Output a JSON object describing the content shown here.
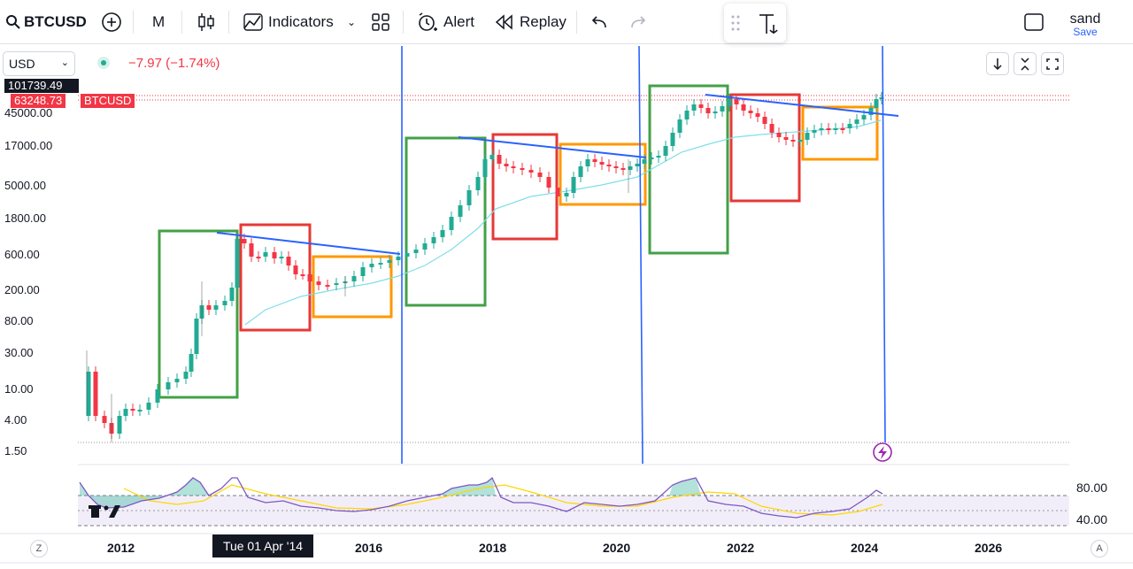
{
  "toolbar": {
    "symbol": "BTCUSD",
    "interval": "M",
    "indicators_label": "Indicators",
    "alert_label": "Alert",
    "replay_label": "Replay",
    "user_name": "sand",
    "save_label": "Save"
  },
  "legend": {
    "currency": "USD",
    "change": "−7.97 (−1.74%)"
  },
  "price_axis": {
    "labels": [
      "45000.00",
      "17000.00",
      "5000.00",
      "1800.00",
      "600.00",
      "200.00",
      "80.00",
      "30.00",
      "10.00",
      "4.00",
      "1.50"
    ],
    "high_tag": "101739.49",
    "last_price_tag": "63248.73",
    "symbol_tag": "BTCUSD"
  },
  "time_axis": {
    "years": [
      "2012",
      "2016",
      "2018",
      "2020",
      "2022",
      "2024",
      "2026"
    ],
    "crosshair_date": "Tue 01 Apr '14",
    "left_corner": "Z",
    "right_corner": "A"
  },
  "rsi": {
    "upper_label": "80.00",
    "lower_label": "40.00"
  },
  "colors": {
    "up": "#22ab94",
    "down": "#f23645",
    "green_box": "#43a047",
    "red_box": "#e53935",
    "orange_box": "#ff9800",
    "trend_line": "#2962ff",
    "ma_line": "#80deea",
    "rsi_line": "#7e57c2",
    "rsi_ma": "#ffd600"
  }
}
